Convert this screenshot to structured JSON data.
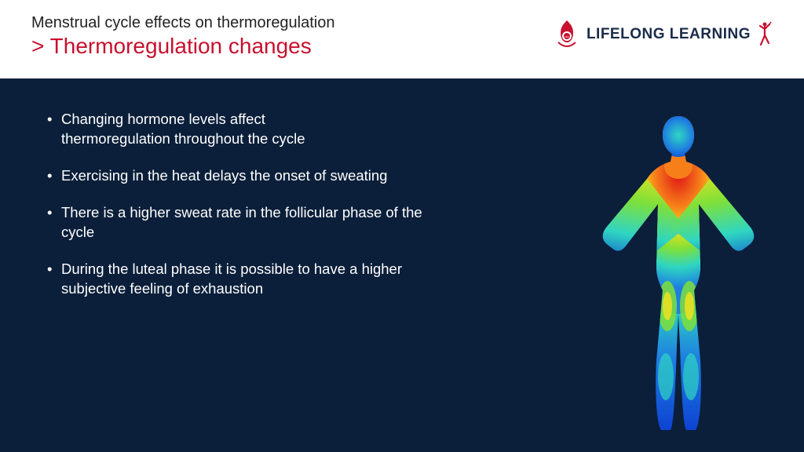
{
  "header": {
    "title_small": "Menstrual cycle effects on thermoregulation",
    "title_chevron": ">",
    "title_large": "Thermoregulation changes",
    "title_small_color": "#222222",
    "title_large_color": "#c8102e",
    "title_small_fontsize": 20,
    "title_large_fontsize": 28
  },
  "logo": {
    "text": "LIFELONG LEARNING",
    "text_color": "#1a2b4a",
    "badge_color": "#c8102e",
    "figure_color": "#c8102e"
  },
  "content": {
    "background_color": "#0b1f3a",
    "text_color": "#ffffff",
    "bullet_fontsize": 18.5,
    "bullets": [
      "Changing hormone levels affect thermoregulation throughout the cycle",
      "Exercising in the heat delays the onset of sweating",
      "There is a higher sweat rate in the follicular phase of the cycle",
      "During the luteal phase it is possible to have a higher subjective feeling of exhaustion"
    ]
  },
  "thermal_figure": {
    "type": "infographic",
    "description": "thermal-body-heatmap",
    "background_color": "#0b1f3a",
    "colors": {
      "coldest": "#0b3bd1",
      "cold": "#1e7fe0",
      "cool": "#2fd6c2",
      "mid": "#7ee03a",
      "warm": "#f7e21a",
      "hot": "#f77f1a",
      "hottest": "#e01515"
    }
  }
}
